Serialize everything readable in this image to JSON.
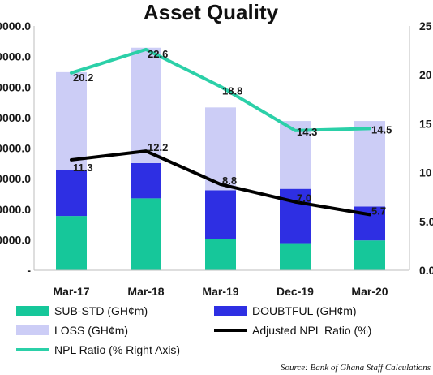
{
  "chart_data": {
    "type": "bar",
    "title": "Asset Quality",
    "categories": [
      "Mar-17",
      "Mar-18",
      "Mar-19",
      "Dec-19",
      "Mar-20"
    ],
    "stacked": true,
    "y_left": {
      "ticks": [
        "0000.0",
        "0000.0",
        "0000.0",
        "0000.0",
        "0000.0",
        "0000.0",
        "0000.0",
        "0000.0",
        "-"
      ],
      "ylim": [
        0,
        9000
      ]
    },
    "y_right": {
      "ticks": [
        "25",
        "20",
        "15",
        "10",
        "5.0",
        "0.0"
      ],
      "ylim": [
        0,
        25
      ]
    },
    "series": [
      {
        "name": "SUB-STD (GH¢m)",
        "axis": "left",
        "kind": "bar",
        "color": "#16c79a",
        "values": [
          2000,
          2650,
          1150,
          1000,
          1100
        ]
      },
      {
        "name": "DOUBTFUL (GH¢m)",
        "axis": "left",
        "kind": "bar",
        "color": "#2e2fe3",
        "values": [
          1700,
          1300,
          1800,
          2000,
          1250
        ]
      },
      {
        "name": "LOSS (GH¢m)",
        "axis": "left",
        "kind": "bar",
        "color": "#cccdf6",
        "values": [
          3600,
          4250,
          3050,
          2500,
          3150
        ]
      },
      {
        "name": "Adjusted NPL Ratio (%)",
        "axis": "right",
        "kind": "line",
        "color": "#000000",
        "values": [
          11.3,
          12.2,
          8.8,
          7.0,
          5.7
        ]
      },
      {
        "name": "NPL Ratio (% Right Axis)",
        "axis": "right",
        "kind": "line",
        "color": "#2bd0a8",
        "values": [
          20.2,
          22.6,
          18.8,
          14.3,
          14.5
        ]
      }
    ],
    "data_labels": {
      "npl": [
        "20.2",
        "22.6",
        "18.8",
        "14.3",
        "14.5"
      ],
      "adjusted": [
        "11.3",
        "12.2",
        "8.8",
        "7.0",
        "5.7"
      ]
    },
    "legend_placement": "bottom",
    "grid": false,
    "source": "Source: Bank of Ghana Staff Calculations"
  }
}
